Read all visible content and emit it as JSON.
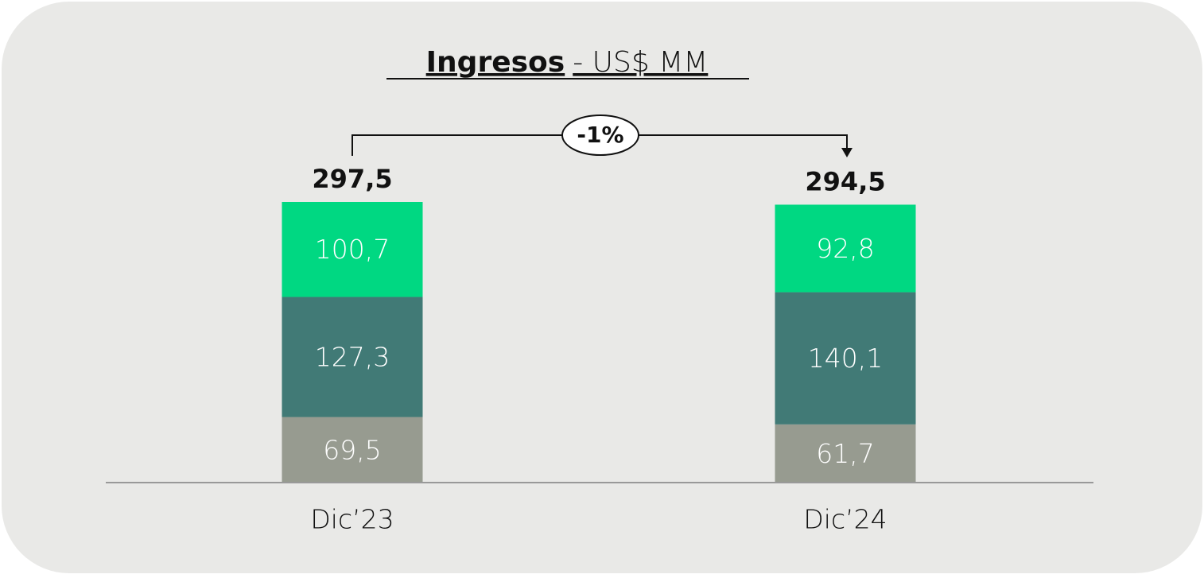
{
  "chart_data": {
    "type": "stacked_bar",
    "title": "Ingresos",
    "title_unit": "- US$ MM",
    "annotation": "-1%",
    "categories": [
      "Dic’23",
      "Dic’24"
    ],
    "series": [
      {
        "color": "#979b90",
        "values": [
          69.5,
          61.7
        ],
        "value_labels": [
          "69,5",
          "61,7"
        ]
      },
      {
        "color": "#417a76",
        "values": [
          127.3,
          140.1
        ],
        "value_labels": [
          "127,3",
          "140,1"
        ]
      },
      {
        "color": "#00d882",
        "values": [
          100.7,
          92.8
        ],
        "value_labels": [
          "100,7",
          "92,8"
        ]
      }
    ],
    "totals": [
      297.5,
      294.5
    ],
    "total_labels": [
      "297,5",
      "294,5"
    ]
  }
}
